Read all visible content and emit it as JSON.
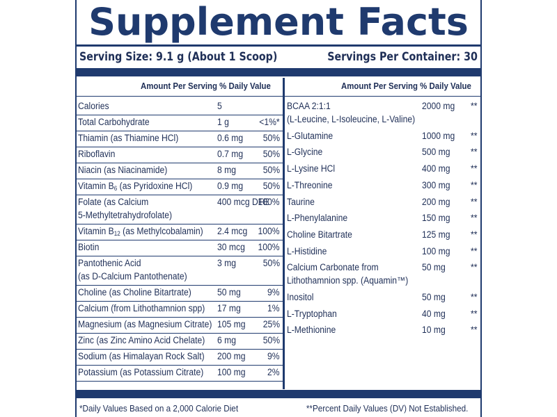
{
  "title": "Supplement Facts",
  "serving_size": "Serving Size: 9.1 g (About 1 Scoop)",
  "servings_per_container": "Servings Per Container: 30",
  "col_header_left": "Amount Per Serving  % Daily Value",
  "col_header_right": "Amount Per Serving  % Daily Value",
  "left_rows": [
    {
      "name": "Calories",
      "amount": "5",
      "dv": ""
    },
    {
      "name": "Total Carbohydrate",
      "amount": "1 g",
      "dv": "<1%*"
    },
    {
      "name": "Thiamin (as Thiamine HCl)",
      "amount": "0.6 mg",
      "dv": "50%"
    },
    {
      "name": "Riboflavin",
      "amount": "0.7 mg",
      "dv": "50%"
    },
    {
      "name": "Niacin (as Niacinamide)",
      "amount": "8 mg",
      "dv": "50%"
    },
    {
      "name": "Vitamin B6 (as Pyridoxine HCl)",
      "amount": "0.9 mg",
      "dv": "50%"
    },
    {
      "name": "Folate (as Calcium",
      "name2": "5-Methyltetrahydrofolate)",
      "amount": "400 mcg DFE",
      "dv": "100%"
    },
    {
      "name": "Vitamin B12 (as Methylcobalamin)",
      "amount": "2.4 mcg",
      "dv": "100%"
    },
    {
      "name": "Biotin",
      "amount": "30 mcg",
      "dv": "100%"
    },
    {
      "name": "Pantothenic Acid",
      "name2": "(as D-Calcium Pantothenate)",
      "amount": "3 mg",
      "dv": "50%"
    },
    {
      "name": "Choline (as Choline Bitartrate)",
      "amount": "50 mg",
      "dv": "9%"
    },
    {
      "name": "Calcium (from Lithothamnion spp)",
      "amount": "17 mg",
      "dv": "1%"
    },
    {
      "name": "Magnesium (as Magnesium Citrate)",
      "amount": "105 mg",
      "dv": "25%"
    },
    {
      "name": "Zinc (as Zinc Amino Acid Chelate)",
      "amount": "6 mg",
      "dv": "50%"
    },
    {
      "name": "Sodium (as Himalayan Rock Salt)",
      "amount": "200 mg",
      "dv": "9%"
    },
    {
      "name": "Potassium (as Potassium Citrate)",
      "amount": "100 mg",
      "dv": "2%"
    }
  ],
  "right_rows": [
    {
      "name": "BCAA 2:1:1",
      "name2": "(L-Leucine, L-Isoleucine, L-Valine)",
      "amount": "2000 mg",
      "dv": "**"
    },
    {
      "name": "L-Glutamine",
      "amount": "1000 mg",
      "dv": "**"
    },
    {
      "name": "L-Glycine",
      "amount": "500 mg",
      "dv": "**"
    },
    {
      "name": "L-Lysine HCl",
      "amount": "400 mg",
      "dv": "**"
    },
    {
      "name": "L-Threonine",
      "amount": "300 mg",
      "dv": "**"
    },
    {
      "name": "Taurine",
      "amount": "200 mg",
      "dv": "**"
    },
    {
      "name": "L-Phenylalanine",
      "amount": "150 mg",
      "dv": "**"
    },
    {
      "name": "Choline Bitartrate",
      "amount": "125 mg",
      "dv": "**"
    },
    {
      "name": "L-Histidine",
      "amount": "100 mg",
      "dv": "**"
    },
    {
      "name": "Calcium Carbonate from",
      "name2": "Lithothamnion spp. (Aquamin™)",
      "amount": "50 mg",
      "dv": "**"
    },
    {
      "name": "Inositol",
      "amount": "50 mg",
      "dv": "**"
    },
    {
      "name": "L-Tryptophan",
      "amount": "40 mg",
      "dv": "**"
    },
    {
      "name": "L-Methionine",
      "amount": "10 mg",
      "dv": "**"
    }
  ],
  "footnote_left": "*Daily Values Based on a 2,000 Calorie Diet",
  "footnote_right": "**Percent Daily Values (DV) Not Established.",
  "colors": {
    "navy": "#1f3a6e",
    "text": "#1f2f57"
  }
}
